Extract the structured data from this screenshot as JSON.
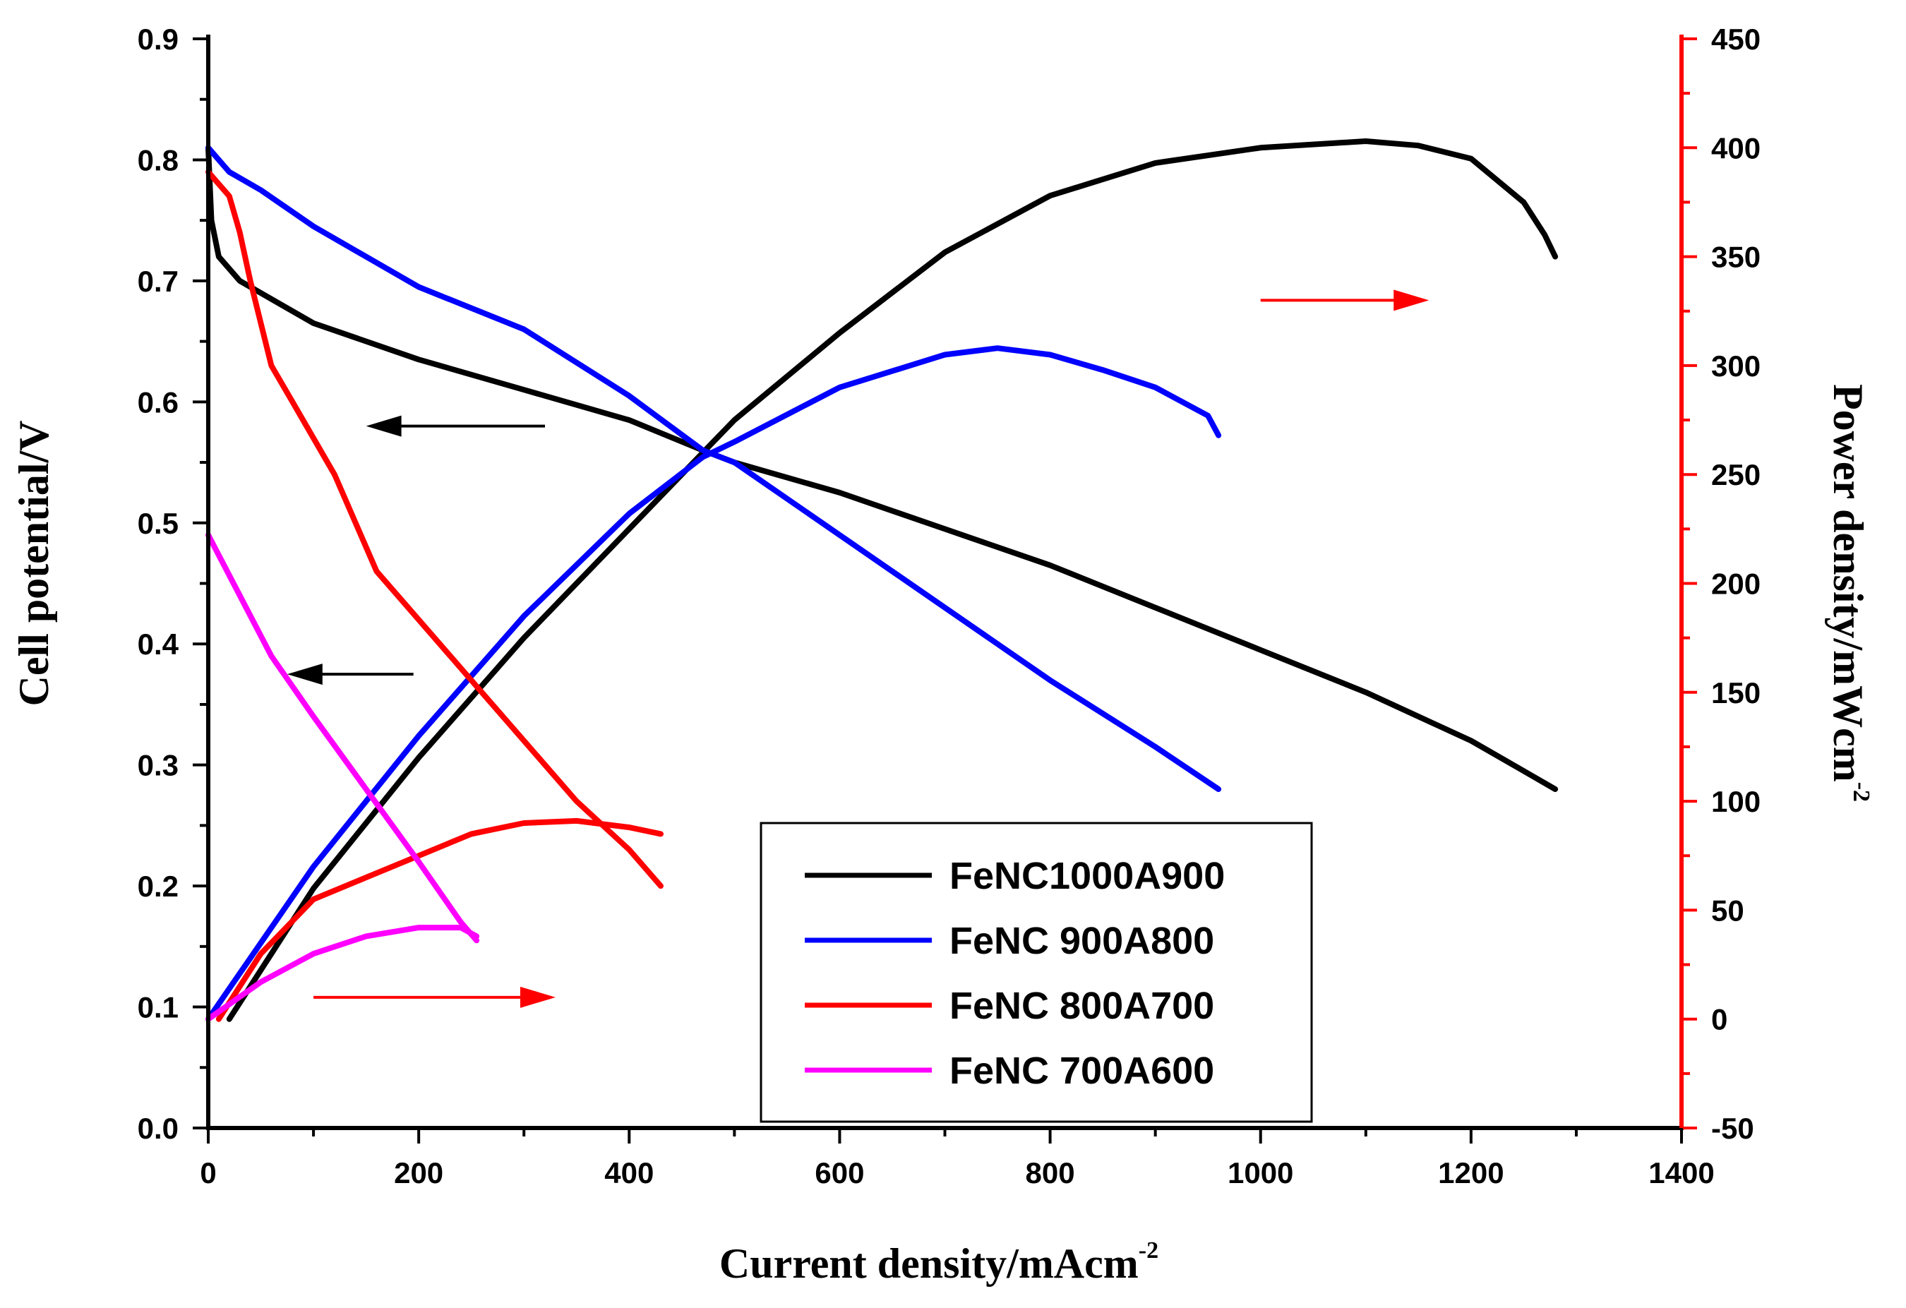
{
  "chart_data": {
    "type": "line",
    "x_axis": {
      "label": "Current density/mAcm",
      "label_superscript": "-2",
      "range": [
        0,
        1400
      ],
      "ticks": [
        0,
        200,
        400,
        600,
        800,
        1000,
        1200,
        1400
      ]
    },
    "y_left": {
      "label": "Cell potential/V",
      "range": [
        0,
        0.9
      ],
      "ticks": [
        0.0,
        0.1,
        0.2,
        0.3,
        0.4,
        0.5,
        0.6,
        0.7,
        0.8,
        0.9
      ]
    },
    "y_right": {
      "label": "Power density/mWcm",
      "label_superscript": "-2",
      "range": [
        -50,
        450
      ],
      "ticks": [
        -50,
        0,
        50,
        100,
        150,
        200,
        250,
        300,
        350,
        400,
        450
      ],
      "color": "#ff0000"
    },
    "legend": {
      "position": "bottom-right",
      "entries": [
        "FeNC1000A900",
        "FeNC 900A800",
        "FeNC 800A700",
        "FeNC 700A600"
      ]
    },
    "series": [
      {
        "name": "FeNC1000A900",
        "color": "#000000",
        "polarization": [
          [
            0,
            0.81
          ],
          [
            3,
            0.75
          ],
          [
            10,
            0.72
          ],
          [
            30,
            0.7
          ],
          [
            60,
            0.685
          ],
          [
            100,
            0.665
          ],
          [
            200,
            0.635
          ],
          [
            300,
            0.61
          ],
          [
            400,
            0.585
          ],
          [
            470,
            0.56
          ],
          [
            500,
            0.55
          ],
          [
            600,
            0.525
          ],
          [
            700,
            0.495
          ],
          [
            800,
            0.465
          ],
          [
            900,
            0.43
          ],
          [
            1000,
            0.395
          ],
          [
            1100,
            0.36
          ],
          [
            1200,
            0.32
          ],
          [
            1250,
            0.295
          ],
          [
            1280,
            0.28
          ]
        ],
        "power": [
          [
            20,
            0
          ],
          [
            100,
            60
          ],
          [
            200,
            120
          ],
          [
            300,
            175
          ],
          [
            400,
            225
          ],
          [
            470,
            260
          ],
          [
            500,
            275
          ],
          [
            600,
            315
          ],
          [
            700,
            352
          ],
          [
            800,
            378
          ],
          [
            900,
            393
          ],
          [
            1000,
            400
          ],
          [
            1100,
            403
          ],
          [
            1150,
            401
          ],
          [
            1200,
            395
          ],
          [
            1250,
            375
          ],
          [
            1270,
            360
          ],
          [
            1280,
            350
          ]
        ]
      },
      {
        "name": "FeNC 900A800",
        "color": "#0000ff",
        "polarization": [
          [
            0,
            0.81
          ],
          [
            20,
            0.79
          ],
          [
            50,
            0.775
          ],
          [
            100,
            0.745
          ],
          [
            200,
            0.695
          ],
          [
            300,
            0.66
          ],
          [
            400,
            0.605
          ],
          [
            470,
            0.56
          ],
          [
            500,
            0.55
          ],
          [
            600,
            0.49
          ],
          [
            700,
            0.43
          ],
          [
            800,
            0.37
          ],
          [
            900,
            0.315
          ],
          [
            960,
            0.28
          ]
        ],
        "power": [
          [
            0,
            0
          ],
          [
            100,
            70
          ],
          [
            200,
            130
          ],
          [
            300,
            185
          ],
          [
            400,
            232
          ],
          [
            470,
            258
          ],
          [
            500,
            265
          ],
          [
            600,
            290
          ],
          [
            700,
            305
          ],
          [
            750,
            308
          ],
          [
            800,
            305
          ],
          [
            850,
            298
          ],
          [
            900,
            290
          ],
          [
            950,
            277
          ],
          [
            960,
            268
          ]
        ]
      },
      {
        "name": "FeNC 800A700",
        "color": "#ff0000",
        "polarization": [
          [
            0,
            0.79
          ],
          [
            20,
            0.77
          ],
          [
            30,
            0.74
          ],
          [
            40,
            0.7
          ],
          [
            60,
            0.63
          ],
          [
            80,
            0.6
          ],
          [
            100,
            0.57
          ],
          [
            120,
            0.54
          ],
          [
            140,
            0.5
          ],
          [
            160,
            0.46
          ],
          [
            200,
            0.42
          ],
          [
            250,
            0.37
          ],
          [
            300,
            0.32
          ],
          [
            350,
            0.27
          ],
          [
            400,
            0.23
          ],
          [
            430,
            0.2
          ]
        ],
        "power": [
          [
            10,
            0
          ],
          [
            50,
            30
          ],
          [
            100,
            55
          ],
          [
            150,
            65
          ],
          [
            200,
            75
          ],
          [
            250,
            85
          ],
          [
            300,
            90
          ],
          [
            350,
            91
          ],
          [
            400,
            88
          ],
          [
            430,
            85
          ]
        ]
      },
      {
        "name": "FeNC 700A600",
        "color": "#ff00ff",
        "polarization": [
          [
            0,
            0.49
          ],
          [
            30,
            0.44
          ],
          [
            60,
            0.39
          ],
          [
            100,
            0.34
          ],
          [
            150,
            0.28
          ],
          [
            200,
            0.22
          ],
          [
            240,
            0.17
          ],
          [
            255,
            0.155
          ]
        ],
        "power": [
          [
            0,
            0
          ],
          [
            50,
            17
          ],
          [
            100,
            30
          ],
          [
            150,
            38
          ],
          [
            200,
            42
          ],
          [
            240,
            42
          ],
          [
            255,
            38
          ]
        ]
      }
    ],
    "annotations": [
      {
        "type": "arrow",
        "direction": "right",
        "color": "#ff0000",
        "target_axis": "right",
        "from": [
          1000,
          330
        ],
        "to": [
          1160,
          330
        ]
      },
      {
        "type": "arrow",
        "direction": "left",
        "color": "#000000",
        "target_axis": "left",
        "from": [
          320,
          0.58
        ],
        "to": [
          150,
          0.58
        ]
      },
      {
        "type": "arrow",
        "direction": "left",
        "color": "#000000",
        "target_axis": "left",
        "from": [
          195,
          0.375
        ],
        "to": [
          75,
          0.375
        ]
      },
      {
        "type": "arrow",
        "direction": "right",
        "color": "#ff0000",
        "target_axis": "right",
        "from": [
          100,
          10
        ],
        "to": [
          330,
          10
        ]
      }
    ]
  }
}
